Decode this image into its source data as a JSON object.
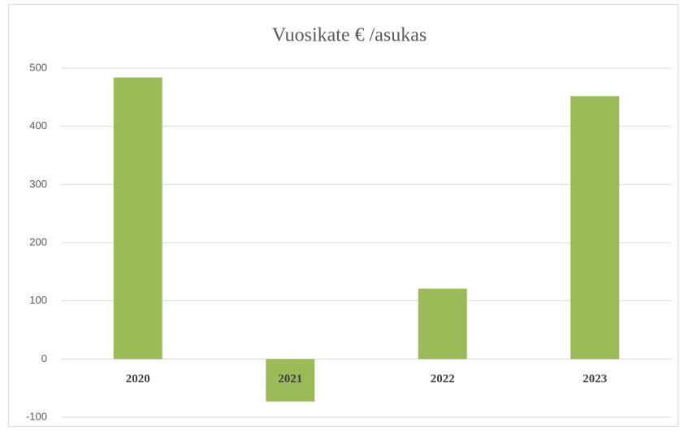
{
  "chart_data": {
    "type": "bar",
    "title": "Vuosikate € /asukas",
    "categories": [
      "2020",
      "2021",
      "2022",
      "2023"
    ],
    "values": [
      484,
      -73,
      121,
      452
    ],
    "color": "#9bbb59",
    "ylim": [
      -100,
      500
    ],
    "yticks": [
      -100,
      0,
      100,
      200,
      300,
      400,
      500
    ],
    "grid": true
  }
}
